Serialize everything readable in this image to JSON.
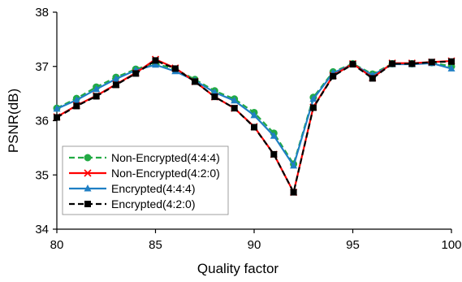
{
  "chart_data": {
    "type": "line",
    "title": "",
    "xlabel": "Quality factor",
    "ylabel": "PSNR(dB)",
    "xlim": [
      80,
      100
    ],
    "ylim": [
      34,
      38
    ],
    "xticks": [
      "80",
      "85",
      "90",
      "95",
      "100"
    ],
    "yticks": [
      "34",
      "35",
      "36",
      "37",
      "38"
    ],
    "grid": false,
    "legend_position": "bottom-left",
    "x": [
      80,
      81,
      82,
      83,
      84,
      85,
      86,
      87,
      88,
      89,
      90,
      91,
      92,
      93,
      94,
      95,
      96,
      97,
      98,
      99,
      100
    ],
    "series": [
      {
        "name": "Non-Encrypted(4:4:4)",
        "color": "#22aa44",
        "dash": "dashed",
        "marker": "circle",
        "values": [
          36.23,
          36.41,
          36.62,
          36.8,
          36.95,
          37.05,
          36.95,
          36.76,
          36.55,
          36.4,
          36.15,
          35.77,
          35.2,
          36.43,
          36.9,
          37.05,
          36.86,
          37.05,
          37.05,
          37.07,
          37.0
        ]
      },
      {
        "name": "Non-Encrypted(4:2:0)",
        "color": "#ff0000",
        "dash": "solid",
        "marker": "x",
        "values": [
          36.07,
          36.28,
          36.46,
          36.67,
          36.88,
          37.13,
          36.97,
          36.72,
          36.44,
          36.23,
          35.89,
          35.38,
          34.68,
          36.25,
          36.83,
          37.05,
          36.79,
          37.06,
          37.06,
          37.08,
          37.1
        ]
      },
      {
        "name": "Encrypted(4:4:4)",
        "color": "#1f7fc4",
        "dash": "solid",
        "marker": "triangle",
        "values": [
          36.22,
          36.38,
          36.58,
          36.77,
          36.93,
          37.03,
          36.91,
          36.74,
          36.52,
          36.37,
          36.1,
          35.72,
          35.17,
          36.4,
          36.88,
          37.04,
          36.84,
          37.04,
          37.04,
          37.06,
          36.96
        ]
      },
      {
        "name": "Encrypted(4:2:0)",
        "color": "#000000",
        "dash": "dashed",
        "marker": "square",
        "values": [
          36.06,
          36.27,
          36.45,
          36.66,
          36.87,
          37.11,
          36.96,
          36.72,
          36.44,
          36.23,
          35.88,
          35.38,
          34.68,
          36.24,
          36.82,
          37.04,
          36.78,
          37.05,
          37.05,
          37.08,
          37.09
        ]
      }
    ]
  }
}
